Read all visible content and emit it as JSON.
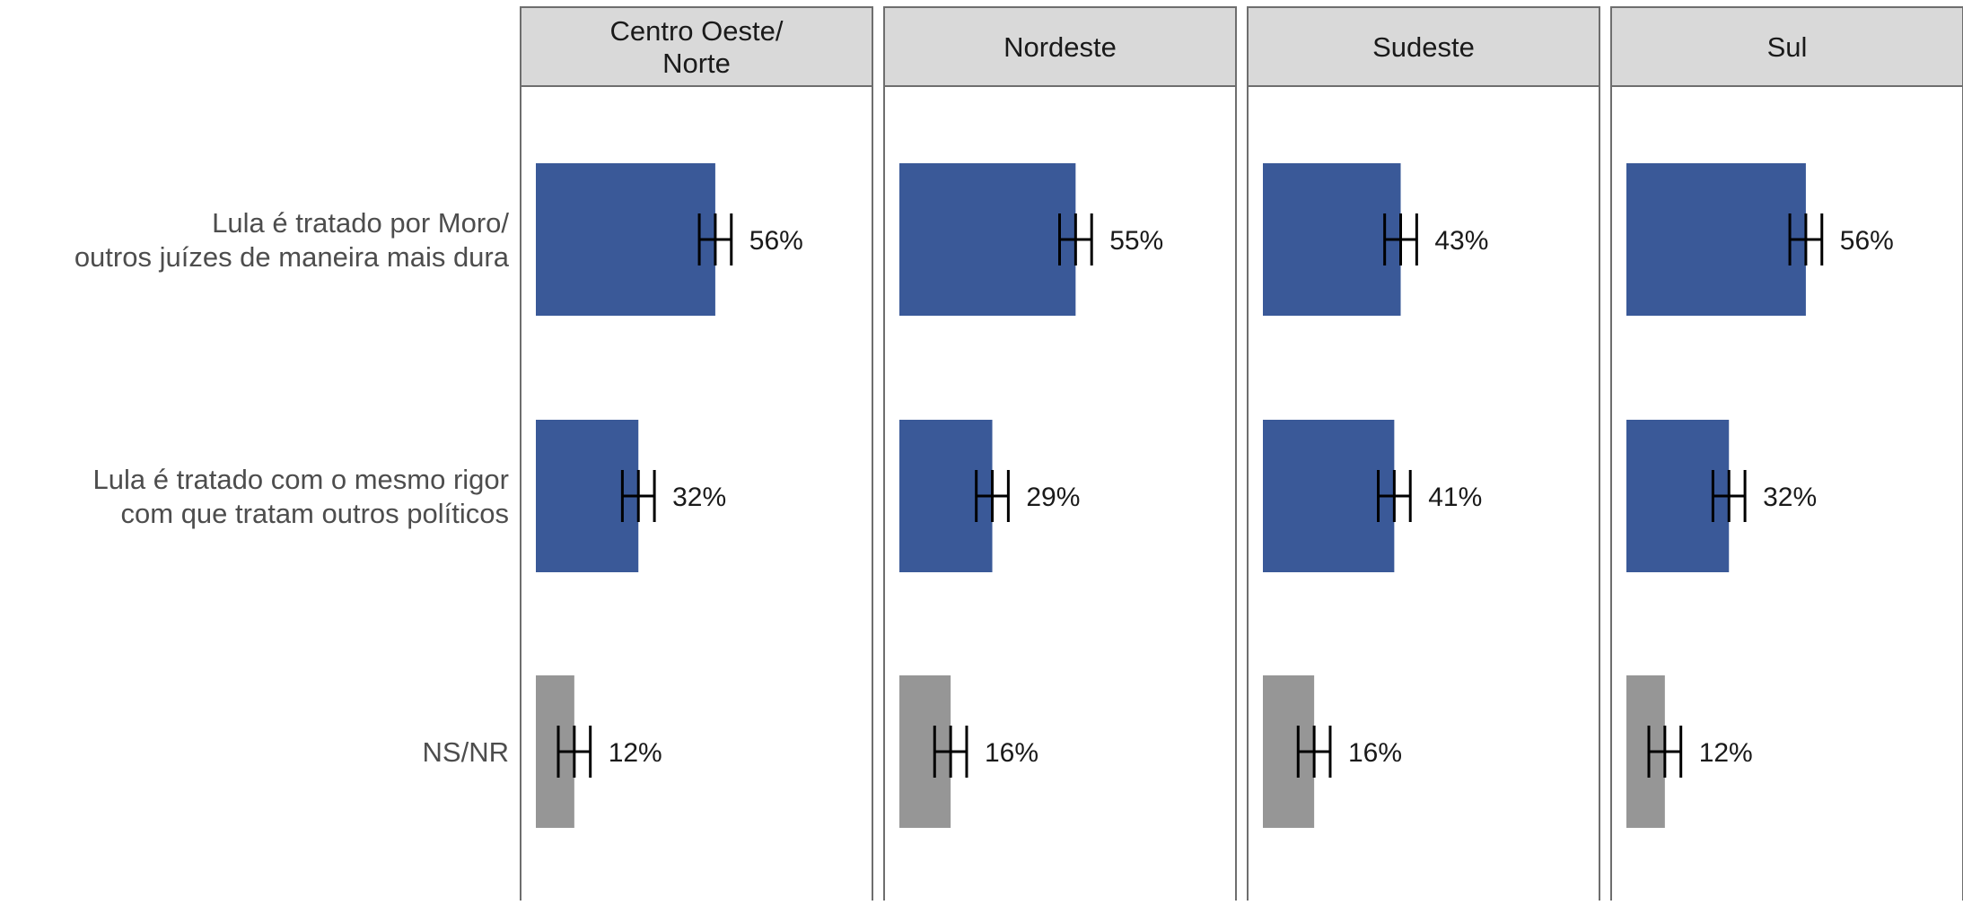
{
  "chart_data": {
    "type": "bar",
    "orientation": "horizontal",
    "facet_by": "region",
    "panels": [
      "Centro Oeste/\nNorte",
      "Nordeste",
      "Sudeste",
      "Sul"
    ],
    "categories": [
      "Lula é tratado por Moro/\noutros juízes de maneira mais dura",
      "Lula é tratado com o mesmo rigor\ncom que tratam outros políticos",
      "NS/NR"
    ],
    "values": [
      [
        56,
        32,
        12
      ],
      [
        55,
        29,
        16
      ],
      [
        43,
        41,
        16
      ],
      [
        56,
        32,
        12
      ]
    ],
    "value_labels": [
      [
        "56%",
        "32%",
        "12%"
      ],
      [
        "55%",
        "29%",
        "16%"
      ],
      [
        "43%",
        "41%",
        "16%"
      ],
      [
        "56%",
        "32%",
        "12%"
      ]
    ],
    "bar_colors": [
      "#3a5998",
      "#3a5998",
      "#969696"
    ],
    "error_bars": true,
    "xlim": [
      0,
      100
    ],
    "grid": false,
    "legend": "none"
  }
}
